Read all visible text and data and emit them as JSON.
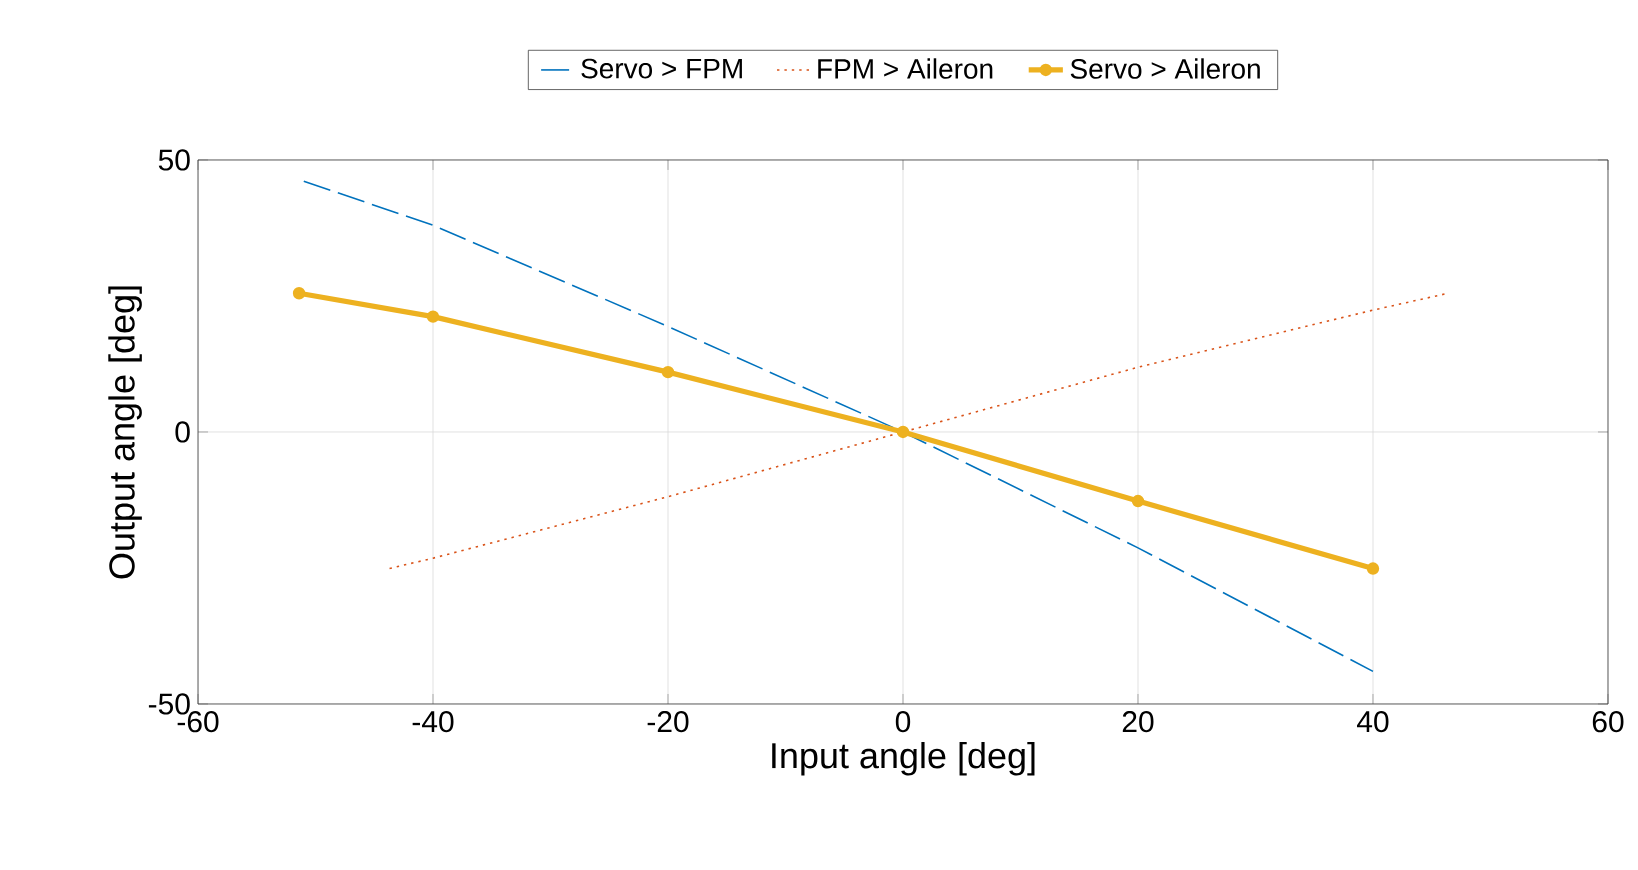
{
  "chart_data": {
    "type": "line",
    "xlabel": "Input angle [deg]",
    "ylabel": "Output angle [deg]",
    "xlim": [
      -60,
      60
    ],
    "xticks": [
      -60,
      -40,
      -20,
      0,
      20,
      40,
      60
    ],
    "ylim": [
      -50,
      50
    ],
    "yticks": [
      -50,
      0,
      50
    ],
    "grid": true,
    "legend": "top",
    "series": [
      {
        "name": "Servo > FPM",
        "color": "#0072bd",
        "line_style": "dashed",
        "x": [
          -51.0,
          -40,
          -20,
          0,
          20,
          40
        ],
        "values": [
          46.1,
          38.0,
          19.4,
          0,
          -21.3,
          -44.0
        ]
      },
      {
        "name": "FPM > Aileron",
        "color": "#d95319",
        "line_style": "dotted",
        "x": [
          -43.7,
          -40,
          -20,
          0,
          20,
          40,
          46.4
        ],
        "values": [
          -25.1,
          -23.2,
          -11.9,
          0,
          11.9,
          22.4,
          25.5
        ]
      },
      {
        "name": "Servo > Aileron",
        "color": "#edb120",
        "line_style": "solid",
        "marker": "circle",
        "x": [
          -51.4,
          -40,
          -20,
          0,
          20,
          40
        ],
        "values": [
          25.5,
          21.2,
          11.0,
          0,
          -12.7,
          -25.1
        ]
      }
    ]
  }
}
